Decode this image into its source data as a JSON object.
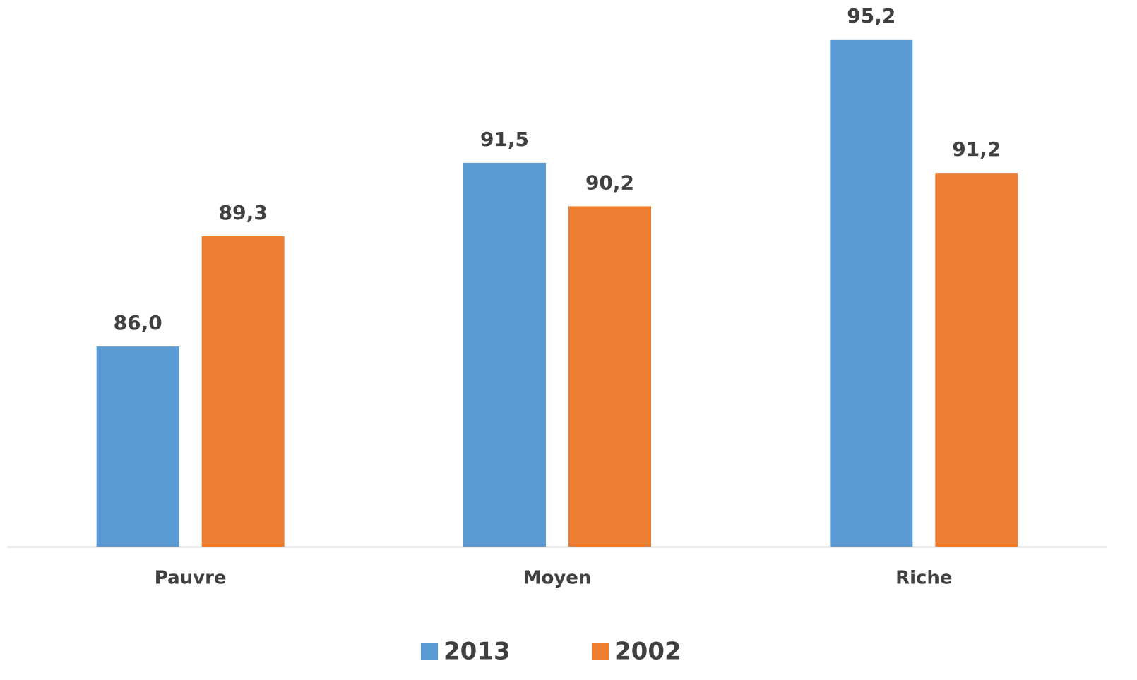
{
  "chart_data": {
    "type": "bar",
    "categories": [
      "Pauvre",
      "Moyen",
      "Riche"
    ],
    "series": [
      {
        "name": "2013",
        "color": "#5b9bd5",
        "values": [
          86.0,
          91.5,
          95.2
        ],
        "value_labels": [
          "86,0",
          "91,5",
          "95,2"
        ]
      },
      {
        "name": "2002",
        "color": "#ed7d31",
        "values": [
          89.3,
          90.2,
          91.2
        ],
        "value_labels": [
          "89,3",
          "90,2",
          "91,2"
        ]
      }
    ],
    "ylim": [
      80,
      96
    ],
    "legend": "bottom"
  }
}
